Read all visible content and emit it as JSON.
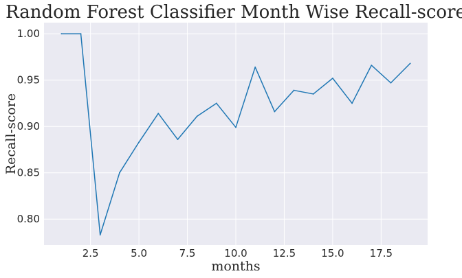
{
  "chart_data": {
    "type": "line",
    "title": "Random Forest Classifier Month Wise Recall-score",
    "xlabel": "months",
    "ylabel": "Recall-score",
    "xlim": [
      0.1,
      19.9
    ],
    "ylim": [
      0.772,
      1.012
    ],
    "xticks": [
      2.5,
      5.0,
      7.5,
      10.0,
      12.5,
      15.0,
      17.5
    ],
    "xtick_labels": [
      "2.5",
      "5.0",
      "7.5",
      "10.0",
      "12.5",
      "15.0",
      "17.5"
    ],
    "yticks": [
      0.8,
      0.85,
      0.9,
      0.95,
      1.0
    ],
    "ytick_labels": [
      "0.80",
      "0.85",
      "0.90",
      "0.95",
      "1.00"
    ],
    "grid": true,
    "colors": {
      "background": "#eaeaf2",
      "line": "#1f77b4",
      "grid": "#ffffff"
    },
    "series": [
      {
        "x": [
          1,
          2,
          3,
          4,
          5,
          6,
          7,
          8,
          9,
          10,
          11,
          12,
          13,
          14,
          15,
          16,
          17,
          18,
          19
        ],
        "y": [
          1.0,
          1.0,
          0.783,
          0.85,
          0.883,
          0.914,
          0.886,
          0.911,
          0.925,
          0.899,
          0.964,
          0.916,
          0.939,
          0.935,
          0.952,
          0.925,
          0.966,
          0.947,
          0.968
        ]
      }
    ]
  }
}
